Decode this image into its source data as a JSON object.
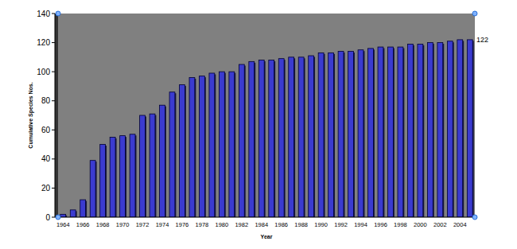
{
  "chart_data": {
    "type": "bar",
    "x_label": "Year",
    "y_label": "Cumulative Species Nos.",
    "annotations": [
      "122"
    ],
    "categories": [
      "1964",
      null,
      "1966",
      null,
      "1968",
      null,
      "1970",
      null,
      "1972",
      null,
      "1974",
      null,
      "1976",
      null,
      "1978",
      null,
      "1980",
      null,
      "1982",
      null,
      "1984",
      null,
      "1986",
      null,
      "1988",
      null,
      "1990",
      null,
      "1992",
      null,
      "1994",
      null,
      "1996",
      null,
      "1998",
      null,
      "2000",
      null,
      "2002",
      null,
      "2004",
      null
    ],
    "values": [
      2,
      5,
      12,
      39,
      50,
      55,
      56,
      57,
      70,
      71,
      77,
      86,
      91,
      96,
      97,
      99,
      100,
      100,
      105,
      107,
      108,
      108,
      109,
      110,
      110,
      111,
      113,
      113,
      114,
      114,
      115,
      116,
      117,
      117,
      117,
      119,
      119,
      120,
      120,
      121,
      122,
      122
    ],
    "color": "#3b3bd0",
    "ylim": [
      0,
      140
    ],
    "yticks": [
      0,
      20,
      40,
      60,
      80,
      100,
      120,
      140
    ],
    "grid": false
  }
}
